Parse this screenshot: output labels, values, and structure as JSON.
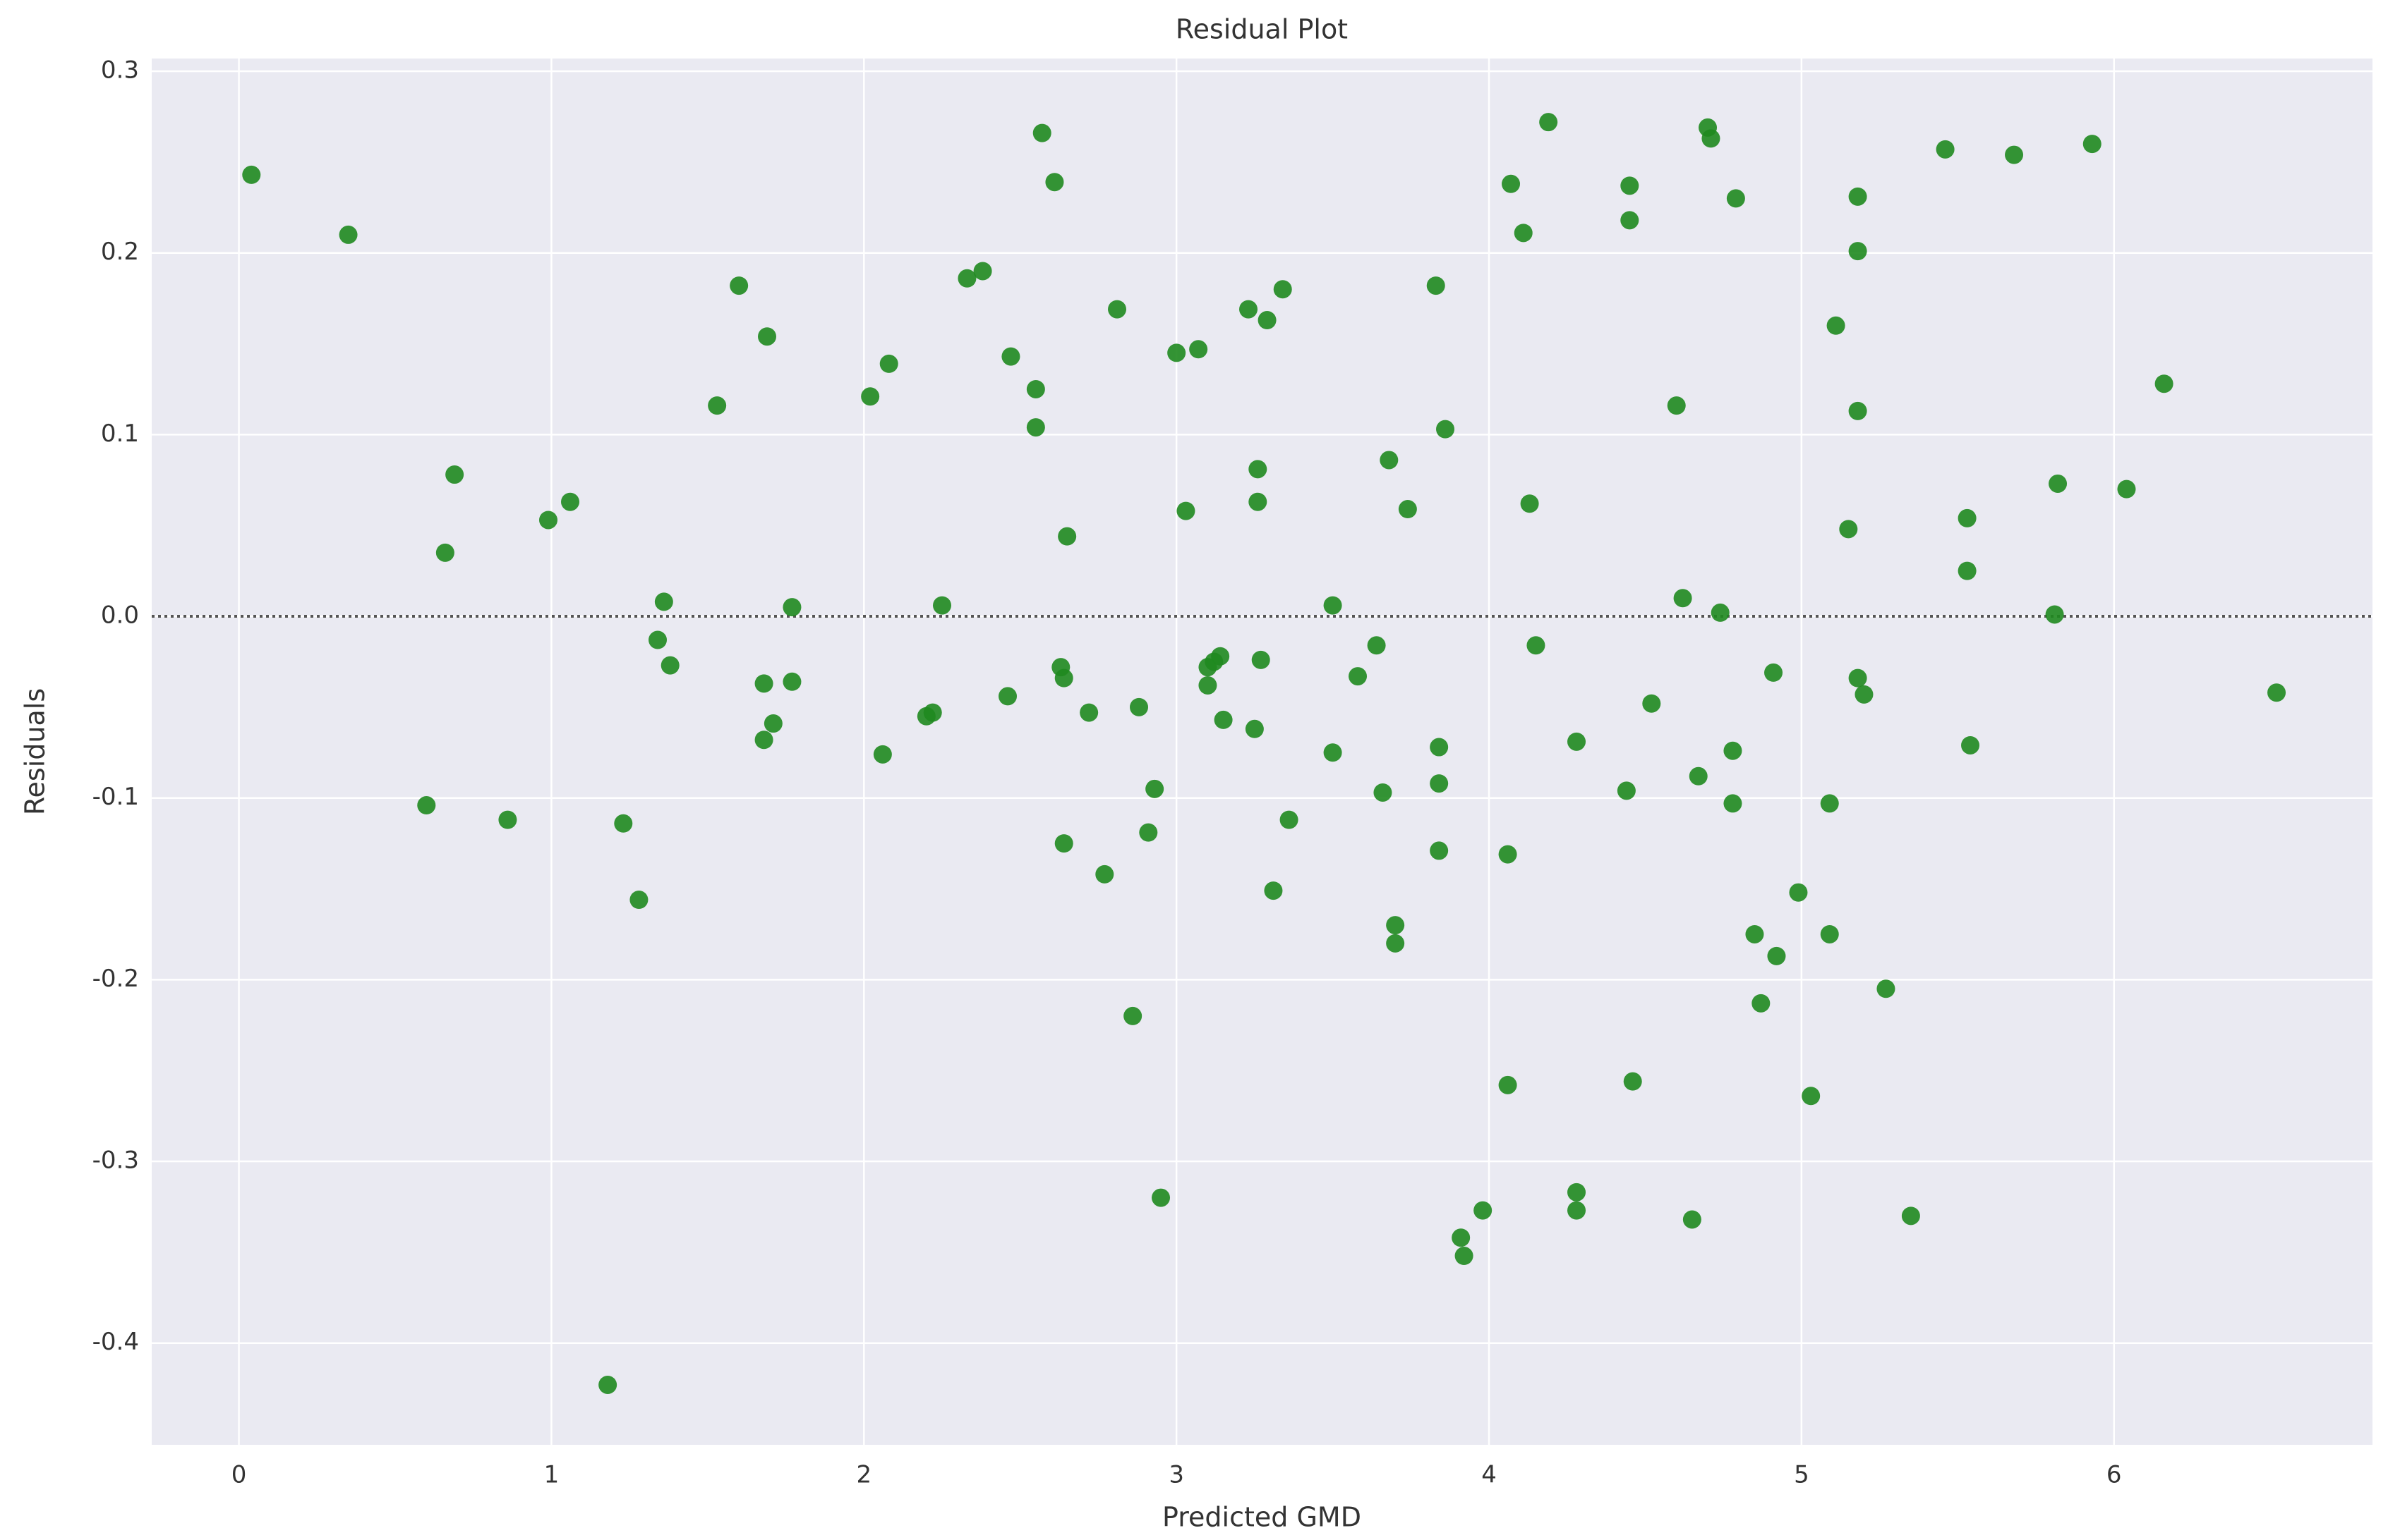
{
  "chart_data": {
    "type": "scatter",
    "title": "Residual Plot",
    "x_label": "Predicted GMD",
    "y_label": "Residuals",
    "color": "#1f8a1f",
    "grid": true,
    "hline": 0,
    "xlim": [
      -0.279,
      6.827
    ],
    "ylim": [
      -0.456,
      0.307
    ],
    "xticks": [
      0,
      1,
      2,
      3,
      4,
      5,
      6
    ],
    "yticks": [
      -0.4,
      -0.3,
      -0.2,
      -0.1,
      {
        "value": 0,
        "label": "0.0"
      },
      0.1,
      0.2,
      0.3
    ],
    "x": [
      0.04,
      0.35,
      0.66,
      0.69,
      0.6,
      0.86,
      0.99,
      1.06,
      1.18,
      1.23,
      1.28,
      1.34,
      1.36,
      1.38,
      1.53,
      1.6,
      1.68,
      1.68,
      1.69,
      1.71,
      1.77,
      1.77,
      2.02,
      2.06,
      2.08,
      2.2,
      2.22,
      2.25,
      2.33,
      2.38,
      2.46,
      2.47,
      2.55,
      2.55,
      2.57,
      2.61,
      2.63,
      2.64,
      2.64,
      2.65,
      2.72,
      2.77,
      2.81,
      2.86,
      2.88,
      2.91,
      2.93,
      2.95,
      3.0,
      3.03,
      3.07,
      3.1,
      3.1,
      3.12,
      3.14,
      3.15,
      3.23,
      3.25,
      3.26,
      3.26,
      3.27,
      3.29,
      3.31,
      3.34,
      3.36,
      3.5,
      3.5,
      3.58,
      3.64,
      3.66,
      3.68,
      3.7,
      3.7,
      3.74,
      3.83,
      3.84,
      3.84,
      3.84,
      3.86,
      3.91,
      3.92,
      3.98,
      4.06,
      4.06,
      4.07,
      4.11,
      4.13,
      4.15,
      4.19,
      4.28,
      4.28,
      4.28,
      4.44,
      4.45,
      4.45,
      4.46,
      4.52,
      4.6,
      4.62,
      4.65,
      4.67,
      4.7,
      4.71,
      4.74,
      4.78,
      4.78,
      4.79,
      4.85,
      4.87,
      4.91,
      4.92,
      4.99,
      5.03,
      5.09,
      5.09,
      5.11,
      5.15,
      5.18,
      5.18,
      5.18,
      5.18,
      5.2,
      5.27,
      5.35,
      5.46,
      5.53,
      5.53,
      5.54,
      5.68,
      5.81,
      5.82,
      5.93,
      6.04,
      6.16,
      6.52
    ],
    "values": [
      0.243,
      0.21,
      0.035,
      0.078,
      -0.104,
      -0.112,
      0.053,
      0.063,
      -0.423,
      -0.114,
      -0.156,
      -0.013,
      0.008,
      -0.027,
      0.116,
      0.182,
      -0.037,
      -0.068,
      0.154,
      -0.059,
      -0.036,
      0.005,
      0.121,
      -0.076,
      0.139,
      -0.055,
      -0.053,
      0.006,
      0.186,
      0.19,
      -0.044,
      0.143,
      0.125,
      0.104,
      0.266,
      0.239,
      -0.028,
      -0.034,
      -0.125,
      0.044,
      -0.053,
      -0.142,
      0.169,
      -0.22,
      -0.05,
      -0.119,
      -0.095,
      -0.32,
      0.145,
      0.058,
      0.147,
      -0.038,
      -0.028,
      -0.025,
      -0.022,
      -0.057,
      0.169,
      -0.062,
      0.081,
      0.063,
      -0.024,
      0.163,
      -0.151,
      0.18,
      -0.112,
      0.006,
      -0.075,
      -0.033,
      -0.016,
      -0.097,
      0.086,
      -0.17,
      -0.18,
      0.059,
      0.182,
      -0.072,
      -0.092,
      -0.129,
      0.103,
      -0.342,
      -0.352,
      -0.327,
      -0.258,
      -0.131,
      0.238,
      0.211,
      0.062,
      -0.016,
      0.272,
      -0.317,
      -0.069,
      -0.327,
      -0.096,
      0.237,
      0.218,
      -0.256,
      -0.048,
      0.116,
      0.01,
      -0.332,
      -0.088,
      0.269,
      0.263,
      0.002,
      -0.074,
      -0.103,
      0.23,
      -0.175,
      -0.213,
      -0.031,
      -0.187,
      -0.152,
      -0.264,
      -0.103,
      -0.175,
      0.16,
      0.048,
      0.231,
      0.201,
      0.113,
      -0.034,
      -0.043,
      -0.205,
      -0.33,
      0.257,
      0.054,
      0.025,
      -0.071,
      0.254,
      0.001,
      0.073,
      0.26,
      0.07,
      0.128,
      -0.042
    ]
  }
}
